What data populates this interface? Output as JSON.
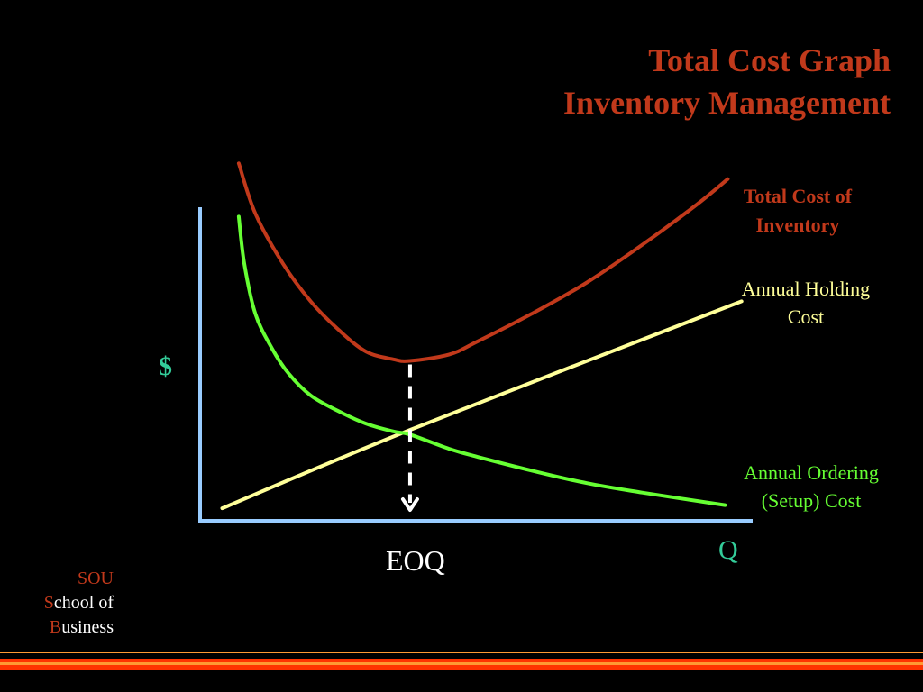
{
  "title": {
    "line1": "Total Cost Graph",
    "line2": "Inventory Management"
  },
  "colors": {
    "background": "#000000",
    "title": "#C1391B",
    "total_cost": "#C1391B",
    "holding_cost": "#FFFF99",
    "ordering_cost": "#66FF33",
    "axis": "#99CCFF",
    "axis_labels": "#33CC99",
    "eoq_marker": "#FFFFFF",
    "footer_stripe_red": "#FF3300",
    "footer_stripe_orange": "#FF9933"
  },
  "chart_data": {
    "type": "line",
    "title": "Total Cost Graph",
    "xlabel": "Q",
    "ylabel": "$",
    "x_tick_label": "EOQ",
    "xlim": [
      0,
      10
    ],
    "ylim": [
      0,
      10
    ],
    "eoq_x": 3.8,
    "grid": false,
    "axis_ticks": "none (qualitative axes)",
    "series": [
      {
        "name": "Total Cost of Inventory",
        "key": "total",
        "color": "#C1391B",
        "x": [
          0.7,
          1.0,
          1.5,
          2.0,
          2.5,
          3.0,
          3.5,
          3.8,
          4.5,
          5.0,
          6.0,
          7.0,
          8.0,
          9.0,
          9.55
        ],
        "y": [
          11.4,
          9.8,
          8.2,
          7.0,
          6.1,
          5.4,
          5.15,
          5.1,
          5.3,
          5.7,
          6.6,
          7.6,
          8.8,
          10.1,
          10.9
        ]
      },
      {
        "name": "Annual Holding Cost",
        "key": "holding",
        "color": "#FFFF99",
        "x": [
          0.4,
          3.8,
          9.8
        ],
        "y": [
          0.4,
          2.9,
          7.0
        ]
      },
      {
        "name": "Annual Ordering (Setup) Cost",
        "key": "ordering",
        "color": "#66FF33",
        "x": [
          0.7,
          0.8,
          1.0,
          1.3,
          1.6,
          2.0,
          2.5,
          3.0,
          3.5,
          3.8,
          4.5,
          5.0,
          6.0,
          7.0,
          8.0,
          9.5
        ],
        "y": [
          9.7,
          8.2,
          6.6,
          5.5,
          4.7,
          4.0,
          3.5,
          3.1,
          2.85,
          2.75,
          2.3,
          2.05,
          1.6,
          1.2,
          0.9,
          0.5
        ]
      }
    ]
  },
  "labels": {
    "total_cost_line1": "Total Cost of",
    "total_cost_line2": "Inventory",
    "holding_line1": "Annual Holding",
    "holding_line2": "Cost",
    "ordering_line1": "Annual Ordering",
    "ordering_line2": "(Setup) Cost"
  },
  "footer": {
    "line1": "SOU",
    "line2_initial": "S",
    "line2_rest": "chool of",
    "line3_initial": "B",
    "line3_rest": "usiness"
  }
}
